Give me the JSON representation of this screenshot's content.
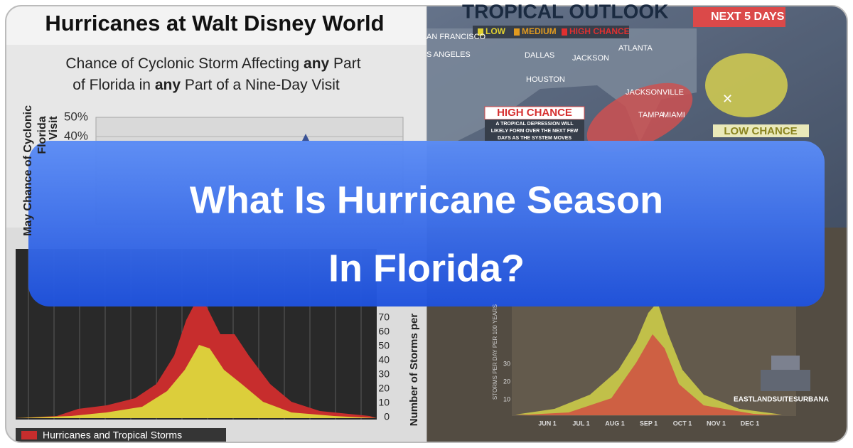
{
  "disney_chart": {
    "title": "Hurricanes at Walt Disney World",
    "subtitle_parts": [
      "Chance of Cyclonic Storm Affecting ",
      "any",
      " Part",
      "of Florida in ",
      "any",
      " Part of a Nine-Day Visit"
    ],
    "yticks": [
      "50%",
      "40%"
    ],
    "ylabel_lines": [
      "May Chance of Cyclonic",
      "Florida",
      "Visit"
    ]
  },
  "outlook_map": {
    "title": "TROPICAL OUTLOOK",
    "badge": "NEXT 5 DAYS",
    "legend": [
      "LOW",
      "MEDIUM",
      "HIGH CHANCE"
    ],
    "cities": [
      "AN FRANCISCO",
      "S ANGELES",
      "DALLAS",
      "JACKSON",
      "ATLANTA",
      "HOUSTON",
      "JACKSONVILLE",
      "TAMPA",
      "MIAMI"
    ],
    "high_label": "HIGH CHANCE",
    "high_note_lines": [
      "A TROPICAL DEPRESSION WILL",
      "LIKELY FORM OVER THE NEXT FEW",
      "DAYS AS THE SYSTEM MOVES"
    ],
    "low_label": "LOW CHANCE"
  },
  "storm_chart": {
    "yticks": [
      "70",
      "60",
      "50",
      "40",
      "30",
      "20",
      "10",
      "0"
    ],
    "ylabel": "Number of Storms per",
    "legend": "Hurricanes and Tropical Storms"
  },
  "season_chart": {
    "yticks": [
      "30",
      "20",
      "10"
    ],
    "xticks": [
      "JUN 1",
      "JUL 1",
      "AUG 1",
      "SEP 1",
      "OCT 1",
      "NOV 1",
      "DEC 1"
    ],
    "ylabel": "STORMS PER DAY PER 100 YEARS"
  },
  "banner": {
    "lines": [
      "What Is Hurricane Season",
      "In Florida?"
    ]
  },
  "logo": {
    "text": "EASTLANDSUITESURBANA"
  }
}
